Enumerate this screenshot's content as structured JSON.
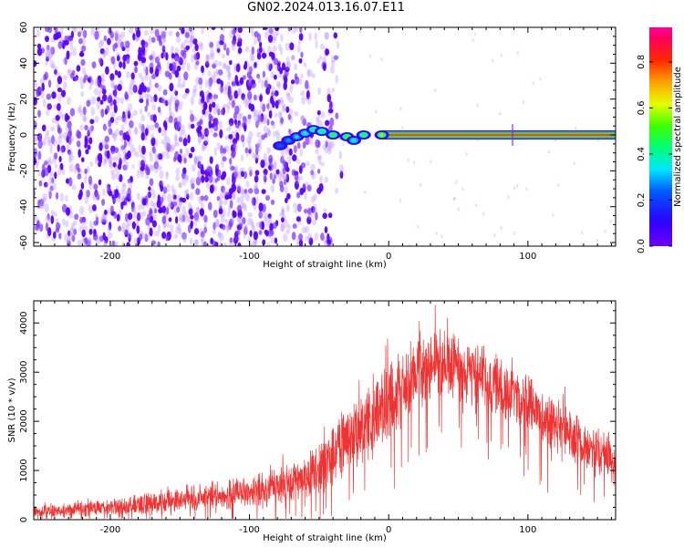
{
  "title": "GN02.2024.013.16.07.E11",
  "colors": {
    "axis": "#000000",
    "snr_line": "#ee3333",
    "noise": "#6a00ff",
    "ridge": "#ff1a1a"
  },
  "colorbar": {
    "label": "Normalized spectral amplitude",
    "ticks": [
      "0.0",
      "0.2",
      "0.4",
      "0.6",
      "0.8"
    ],
    "tick_values": [
      0.0,
      0.2,
      0.4,
      0.6,
      0.8
    ],
    "range": [
      0,
      0.95
    ],
    "colormap": "gist_rainbow reversed (purple-blue-cyan-green-yellow-orange-red-magenta)"
  },
  "chart_data": [
    {
      "type": "heatmap",
      "title": "",
      "xlabel": "Height of straight line (km)",
      "ylabel": "Frequency (Hz)",
      "xlim": [
        -255,
        163
      ],
      "ylim": [
        -62,
        60
      ],
      "x_ticks": [
        -200,
        -100,
        0,
        100
      ],
      "x_tick_labels": [
        "-200",
        "-100",
        "0",
        "100"
      ],
      "y_ticks": [
        -60,
        -40,
        -20,
        0,
        20,
        40,
        60
      ],
      "y_tick_labels": [
        "-60",
        "-40",
        "-20",
        "0",
        "20",
        "40",
        "60"
      ],
      "description_of_content": {
        "noise_region_x": [
          -255,
          -45
        ],
        "noise_amplitude": 0.05,
        "ridge_points": [
          {
            "x": -78,
            "y": -6,
            "amp": 0.25
          },
          {
            "x": -72,
            "y": -3,
            "amp": 0.3
          },
          {
            "x": -66,
            "y": -1,
            "amp": 0.35
          },
          {
            "x": -60,
            "y": 1,
            "amp": 0.4
          },
          {
            "x": -54,
            "y": 3,
            "amp": 0.45
          },
          {
            "x": -48,
            "y": 2,
            "amp": 0.45
          },
          {
            "x": -40,
            "y": 0,
            "amp": 0.5
          },
          {
            "x": -30,
            "y": -1,
            "amp": 0.55
          },
          {
            "x": -25,
            "y": -3,
            "amp": 0.4
          },
          {
            "x": -18,
            "y": 0,
            "amp": 0.5
          },
          {
            "x": -5,
            "y": 0,
            "amp": 0.6
          },
          {
            "x": 10,
            "y": 0,
            "amp": 0.7
          },
          {
            "x": 50,
            "y": 0,
            "amp": 0.8
          },
          {
            "x": 100,
            "y": 0,
            "amp": 0.82
          },
          {
            "x": 160,
            "y": 0,
            "amp": 0.82
          }
        ]
      }
    },
    {
      "type": "line",
      "title": "",
      "xlabel": "Height of straight line (km)",
      "ylabel": "SNR (10 * v/v)",
      "xlim": [
        -255,
        163
      ],
      "ylim": [
        0,
        4450
      ],
      "x_ticks": [
        -200,
        -100,
        0,
        100
      ],
      "x_tick_labels": [
        "-200",
        "-100",
        "0",
        "100"
      ],
      "y_ticks": [
        0,
        1000,
        2000,
        3000,
        4000
      ],
      "y_tick_labels": [
        "0",
        "1000",
        "2000",
        "3000",
        "4000"
      ],
      "series": [
        {
          "envelope_x": [
            -255,
            -200,
            -150,
            -100,
            -70,
            -50,
            -35,
            -20,
            -5,
            10,
            25,
            45,
            60,
            80,
            100,
            120,
            140,
            163
          ],
          "envelope_mean": [
            150,
            250,
            400,
            550,
            750,
            1000,
            1500,
            1800,
            2200,
            2700,
            3100,
            3200,
            3000,
            2700,
            2300,
            1900,
            1550,
            1150
          ],
          "envelope_spread": [
            140,
            200,
            300,
            400,
            500,
            650,
            800,
            900,
            900,
            850,
            800,
            800,
            750,
            700,
            700,
            650,
            600,
            600
          ]
        }
      ]
    }
  ]
}
